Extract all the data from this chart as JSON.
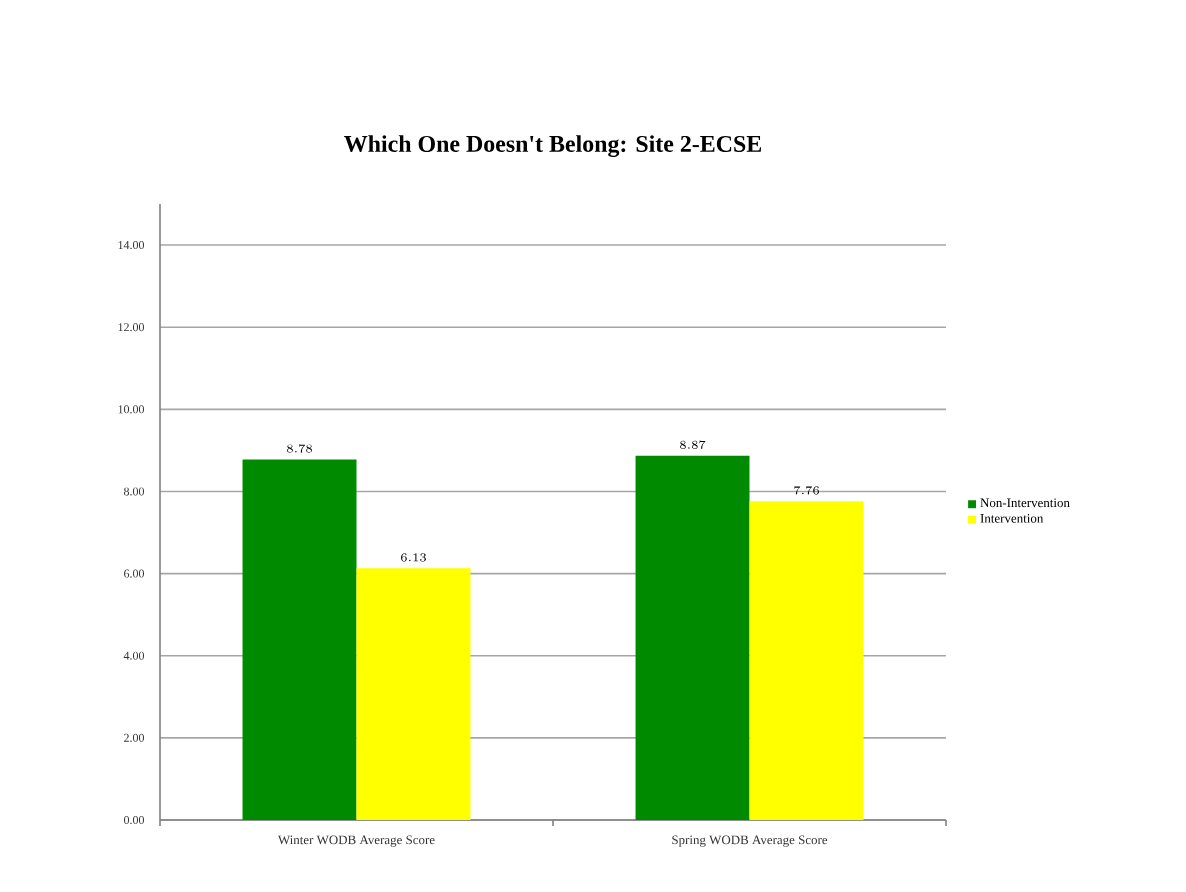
{
  "chart_data": {
    "type": "bar",
    "title": "Which One Doesn't Belong: Site 2-ECSE",
    "categories": [
      "Winter WODB Average Score",
      "Spring WODB Average Score"
    ],
    "series": [
      {
        "name": "Non-Intervention",
        "color": "#008a00",
        "values": [
          8.78,
          8.87
        ]
      },
      {
        "name": "Intervention",
        "color": "#ffff00",
        "values": [
          6.13,
          7.76
        ]
      }
    ],
    "ylim": [
      0,
      15
    ],
    "yticks": [
      {
        "value": 0,
        "label": "0.00"
      },
      {
        "value": 2,
        "label": "2.00"
      },
      {
        "value": 4,
        "label": "4.00"
      },
      {
        "value": 6,
        "label": "6.00"
      },
      {
        "value": 8,
        "label": "8.00"
      },
      {
        "value": 10,
        "label": "10.00"
      },
      {
        "value": 12,
        "label": "12.00"
      },
      {
        "value": 14,
        "label": "14.00"
      }
    ],
    "grid": "y",
    "legend": "right",
    "data_labels": true
  }
}
